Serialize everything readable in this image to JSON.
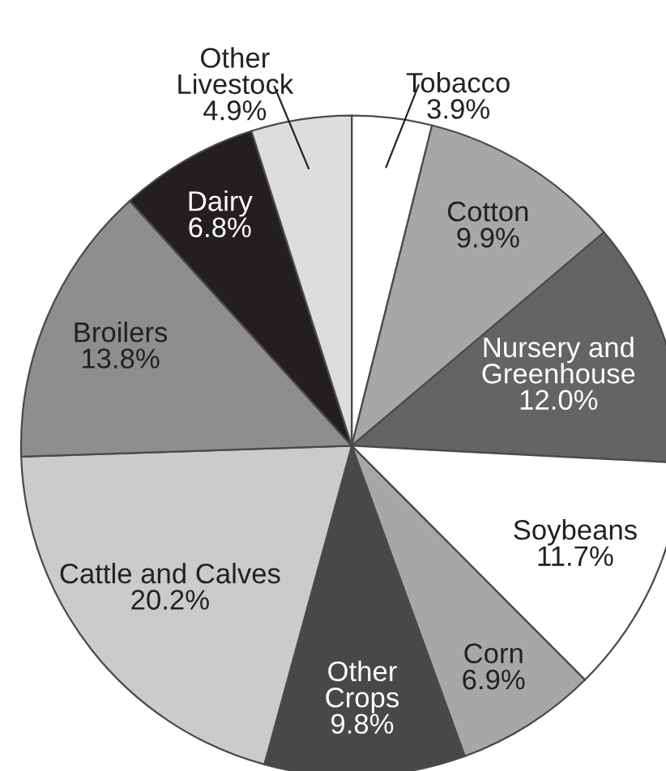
{
  "chart_data": {
    "type": "pie",
    "categories": [
      "Tobacco",
      "Cotton",
      "Nursery and\nGreenhouse",
      "Soybeans",
      "Corn",
      "Other\nCrops",
      "Cattle and Calves",
      "Broilers",
      "Dairy",
      "Other\nLivestock"
    ],
    "values": [
      3.9,
      9.9,
      12.0,
      11.7,
      6.9,
      9.8,
      20.2,
      13.8,
      6.8,
      4.9
    ],
    "value_labels": [
      "3.9%",
      "9.9%",
      "12.0%",
      "11.7%",
      "6.9%",
      "9.8%",
      "20.2%",
      "13.8%",
      "6.8%",
      "4.9%"
    ],
    "colors": [
      "#ffffff",
      "#a7a7a9",
      "#646466",
      "#ffffff",
      "#a7a7a9",
      "#48484a",
      "#cbcbcd",
      "#8e8e90",
      "#231f20",
      "#dcdddf"
    ]
  }
}
